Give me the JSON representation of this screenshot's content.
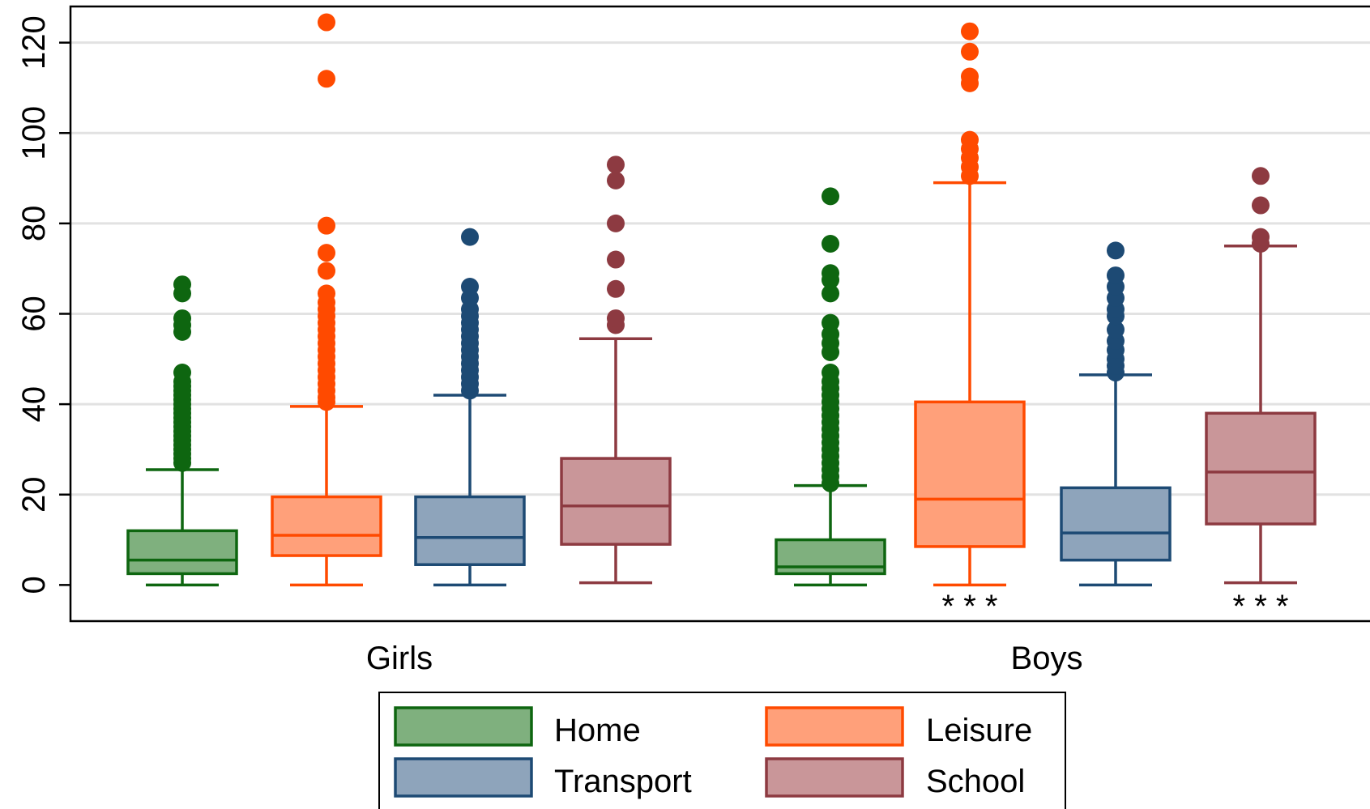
{
  "chart_data": {
    "type": "box",
    "ylim": [
      -8,
      128
    ],
    "yticks": [
      0,
      20,
      40,
      60,
      80,
      100,
      120
    ],
    "grid": true,
    "legend_position": "bottom",
    "groups": [
      {
        "label": "Girls",
        "boxes": [
          {
            "series": "Home",
            "whisker_low": 0,
            "q1": 2.5,
            "median": 5.5,
            "q3": 12,
            "whisker_high": 25.5,
            "outliers": [
              27,
              28,
              29,
              30,
              31,
              32,
              33,
              34,
              35,
              36,
              37,
              38,
              39,
              40,
              41,
              42,
              43,
              44,
              45,
              47,
              56,
              57.5,
              59,
              64.5,
              66.5
            ],
            "significance": ""
          },
          {
            "series": "Leisure",
            "whisker_low": 0,
            "q1": 6.5,
            "median": 11,
            "q3": 19.5,
            "whisker_high": 39.5,
            "outliers": [
              40.5,
              41.5,
              43,
              44.5,
              46,
              47.5,
              49,
              50.5,
              52,
              53.5,
              55,
              56.5,
              58,
              59.5,
              61,
              62.5,
              64.5,
              69.5,
              73.5,
              79.5,
              112,
              124.5
            ],
            "significance": ""
          },
          {
            "series": "Transport",
            "whisker_low": 0,
            "q1": 4.5,
            "median": 10.5,
            "q3": 19.5,
            "whisker_high": 42,
            "outliers": [
              43,
              44.5,
              46,
              47.5,
              49,
              50.5,
              52,
              53.5,
              55,
              56.5,
              58,
              59.5,
              61,
              63.5,
              66,
              77
            ],
            "significance": ""
          },
          {
            "series": "School",
            "whisker_low": 0.5,
            "q1": 9,
            "median": 17.5,
            "q3": 28,
            "whisker_high": 54.5,
            "outliers": [
              57.5,
              59,
              65.5,
              72,
              80,
              89.5,
              93
            ],
            "significance": ""
          }
        ]
      },
      {
        "label": "Boys",
        "boxes": [
          {
            "series": "Home",
            "whisker_low": 0,
            "q1": 2.5,
            "median": 4,
            "q3": 10,
            "whisker_high": 22,
            "outliers": [
              22.5,
              24,
              25.5,
              27,
              28.5,
              30,
              31.5,
              33,
              34.5,
              36,
              37.5,
              39,
              40.5,
              42,
              43.5,
              45,
              47,
              51.5,
              53.5,
              55.5,
              58,
              64.5,
              67.5,
              69,
              75.5,
              86
            ],
            "significance": ""
          },
          {
            "series": "Leisure",
            "whisker_low": 0,
            "q1": 8.5,
            "median": 19,
            "q3": 40.5,
            "whisker_high": 89,
            "outliers": [
              90.5,
              92.5,
              94.5,
              96.5,
              98.5,
              111,
              112.5,
              118,
              122.5
            ],
            "significance": "* * *"
          },
          {
            "series": "Transport",
            "whisker_low": 0,
            "q1": 5.5,
            "median": 11.5,
            "q3": 21.5,
            "whisker_high": 46.5,
            "outliers": [
              47,
              48.5,
              50,
              52,
              54,
              56.5,
              59.5,
              61,
              63.5,
              66,
              68.5,
              74
            ],
            "significance": ""
          },
          {
            "series": "School",
            "whisker_low": 0.5,
            "q1": 13.5,
            "median": 25,
            "q3": 38,
            "whisker_high": 75,
            "outliers": [
              75.5,
              77,
              84,
              90.5
            ],
            "significance": "* * *"
          }
        ]
      }
    ],
    "series": [
      {
        "name": "Home",
        "fill": "#7fb07e",
        "stroke": "#0e6610"
      },
      {
        "name": "Leisure",
        "fill": "#ffa07a",
        "stroke": "#ff4a00"
      },
      {
        "name": "Transport",
        "fill": "#8ea4bb",
        "stroke": "#1d4a74"
      },
      {
        "name": "School",
        "fill": "#c99699",
        "stroke": "#8d3a41"
      }
    ],
    "legend": {
      "order": [
        "Home",
        "Leisure",
        "Transport",
        "School"
      ],
      "columns": 2
    }
  }
}
